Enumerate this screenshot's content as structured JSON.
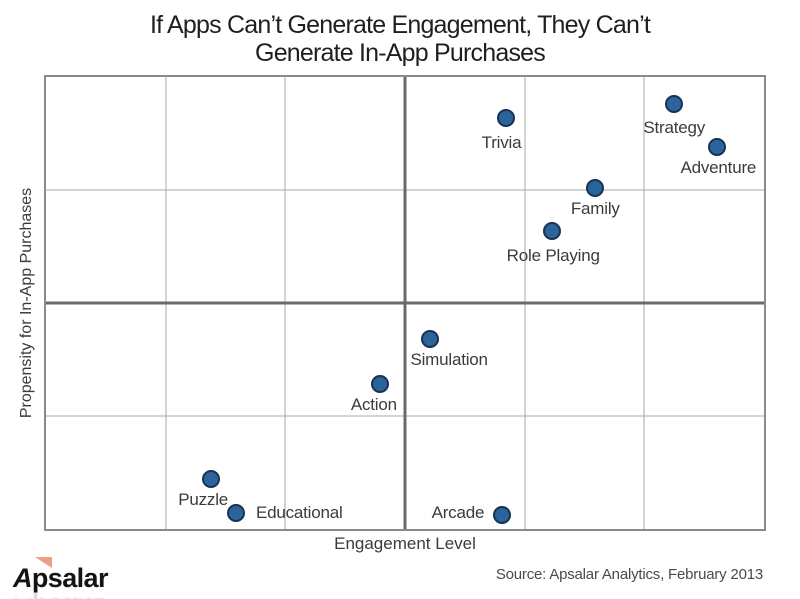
{
  "title": {
    "line1": "If Apps Can’t Generate Engagement, They Can’t",
    "line2": "Generate In-App Purchases"
  },
  "chart_data": {
    "type": "scatter",
    "title_lines": [
      "If Apps Can’t Generate Engagement, They Can’t",
      "Generate In-App Purchases"
    ],
    "xlabel": "Engagement Level",
    "ylabel": "Propensity for In-App Purchases",
    "xlim": [
      0,
      100
    ],
    "ylim": [
      0,
      100
    ],
    "axis_ticks_visible": false,
    "grid": {
      "v_thin": [
        16.667,
        33.333,
        66.667,
        83.333
      ],
      "v_thick": [
        50
      ],
      "h_thin": [
        25,
        75
      ],
      "h_thick": [
        50
      ]
    },
    "points": [
      {
        "label": "Trivia",
        "x": 64.0,
        "y": 91.0,
        "label_offset": [
          -4,
          25
        ]
      },
      {
        "label": "Strategy",
        "x": 87.5,
        "y": 94.0,
        "label_offset": [
          0,
          24
        ]
      },
      {
        "label": "Adventure",
        "x": 93.5,
        "y": 84.5,
        "label_offset": [
          1,
          21
        ]
      },
      {
        "label": "Family",
        "x": 76.5,
        "y": 75.5,
        "label_offset": [
          0,
          21
        ]
      },
      {
        "label": "Role Playing",
        "x": 70.5,
        "y": 66.0,
        "label_offset": [
          1,
          25
        ]
      },
      {
        "label": "Simulation",
        "x": 53.5,
        "y": 42.0,
        "label_offset": [
          19,
          21
        ]
      },
      {
        "label": "Action",
        "x": 46.5,
        "y": 32.0,
        "label_offset": [
          -6,
          21
        ]
      },
      {
        "label": "Puzzle",
        "x": 23.0,
        "y": 11.0,
        "label_offset": [
          -8,
          21
        ]
      },
      {
        "label": "Educational",
        "x": 26.5,
        "y": 3.5,
        "label_offset": [
          63,
          0
        ]
      },
      {
        "label": "Arcade",
        "x": 63.5,
        "y": 3.0,
        "label_offset": [
          -44,
          -2
        ]
      }
    ]
  },
  "footer": {
    "logo_a": "A",
    "logo_rest": "psalar",
    "source": "Source: Apsalar Analytics, February 2013"
  },
  "colors": {
    "point_fill": "#2B649C",
    "point_stroke": "#173350",
    "grid_thin": "#a9a9a9",
    "grid_thick": "#6a6a6a",
    "plot_border": "#8a8a8a",
    "title_text": "#1f1f1f",
    "label_text": "#3b3b3b",
    "source_text": "#4a4a4a",
    "logo_accent": "#EC9F83"
  }
}
